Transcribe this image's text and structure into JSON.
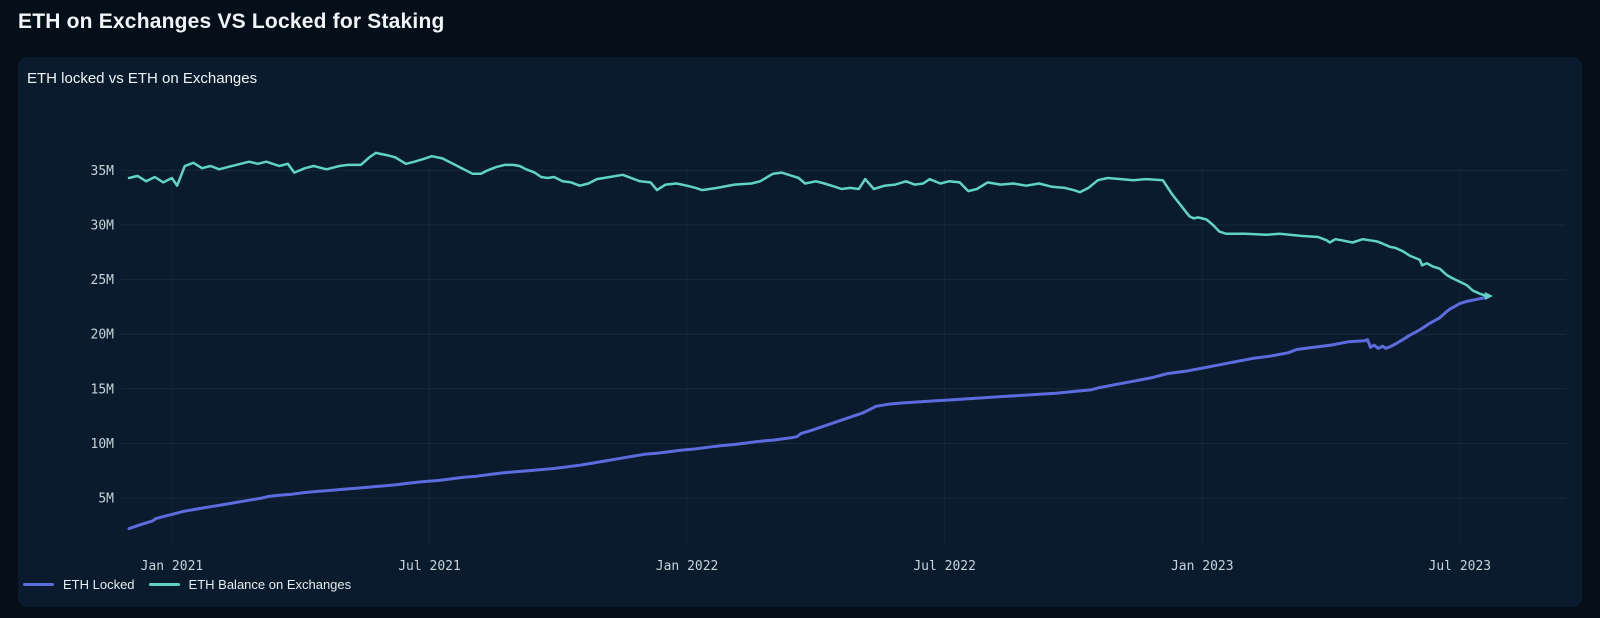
{
  "page": {
    "title": "ETH on Exchanges VS Locked for Staking"
  },
  "colors": {
    "background": "#050f1a",
    "panel": "#091b2c",
    "grid": "rgba(140,175,205,0.10)",
    "grid_vertical": "rgba(140,175,205,0.07)",
    "tick_text": "#c8d3da",
    "eth_locked": "#5c6cdf",
    "eth_balance": "#5ed3c6"
  },
  "chart_data": {
    "type": "line",
    "title": "ETH locked vs ETH on Exchanges",
    "xlabel": "",
    "ylabel": "",
    "x_unit": "months since Dec 2020",
    "ylim": [
      0,
      40.5
    ],
    "grid": true,
    "legend_position": "bottom-left",
    "y_ticks": [
      {
        "v": 5,
        "label": "5M"
      },
      {
        "v": 10,
        "label": "10M"
      },
      {
        "v": 15,
        "label": "15M"
      },
      {
        "v": 20,
        "label": "20M"
      },
      {
        "v": 25,
        "label": "25M"
      },
      {
        "v": 30,
        "label": "30M"
      },
      {
        "v": 35,
        "label": "35M"
      }
    ],
    "x_ticks": [
      {
        "t": 1,
        "label": "Jan 2021"
      },
      {
        "t": 7,
        "label": "Jul 2021"
      },
      {
        "t": 13,
        "label": "Jan 2022"
      },
      {
        "t": 19,
        "label": "Jul 2022"
      },
      {
        "t": 25,
        "label": "Jan 2023"
      },
      {
        "t": 31,
        "label": "Jul 2023"
      }
    ],
    "series": [
      {
        "name": "ETH Locked",
        "color": "#5c6cdf",
        "width": 3,
        "end_marker": false,
        "points": [
          [
            0,
            2.2
          ],
          [
            0.3,
            2.6
          ],
          [
            0.55,
            2.9
          ],
          [
            0.62,
            3.1
          ],
          [
            0.8,
            3.3
          ],
          [
            1.0,
            3.5
          ],
          [
            1.3,
            3.8
          ],
          [
            1.6,
            4.0
          ],
          [
            1.9,
            4.2
          ],
          [
            2.2,
            4.4
          ],
          [
            2.5,
            4.6
          ],
          [
            2.8,
            4.8
          ],
          [
            3.1,
            5.0
          ],
          [
            3.25,
            5.15
          ],
          [
            3.5,
            5.25
          ],
          [
            3.8,
            5.35
          ],
          [
            4.1,
            5.5
          ],
          [
            4.4,
            5.6
          ],
          [
            4.7,
            5.7
          ],
          [
            5.0,
            5.8
          ],
          [
            5.3,
            5.9
          ],
          [
            5.6,
            6.0
          ],
          [
            5.9,
            6.1
          ],
          [
            6.2,
            6.2
          ],
          [
            6.5,
            6.35
          ],
          [
            6.85,
            6.5
          ],
          [
            7.2,
            6.6
          ],
          [
            7.5,
            6.75
          ],
          [
            7.8,
            6.9
          ],
          [
            8.1,
            7.0
          ],
          [
            8.4,
            7.15
          ],
          [
            8.7,
            7.3
          ],
          [
            9.0,
            7.4
          ],
          [
            9.3,
            7.5
          ],
          [
            9.6,
            7.6
          ],
          [
            9.9,
            7.7
          ],
          [
            10.2,
            7.85
          ],
          [
            10.5,
            8.0
          ],
          [
            10.8,
            8.2
          ],
          [
            11.1,
            8.4
          ],
          [
            11.4,
            8.6
          ],
          [
            11.7,
            8.8
          ],
          [
            12.0,
            9.0
          ],
          [
            12.3,
            9.1
          ],
          [
            12.6,
            9.25
          ],
          [
            12.9,
            9.4
          ],
          [
            13.2,
            9.5
          ],
          [
            13.5,
            9.65
          ],
          [
            13.8,
            9.8
          ],
          [
            14.1,
            9.9
          ],
          [
            14.4,
            10.05
          ],
          [
            14.7,
            10.2
          ],
          [
            15.0,
            10.3
          ],
          [
            15.4,
            10.5
          ],
          [
            15.55,
            10.6
          ],
          [
            15.65,
            10.9
          ],
          [
            15.9,
            11.2
          ],
          [
            16.2,
            11.6
          ],
          [
            16.5,
            12.0
          ],
          [
            16.8,
            12.4
          ],
          [
            17.1,
            12.8
          ],
          [
            17.4,
            13.4
          ],
          [
            17.7,
            13.6
          ],
          [
            18.0,
            13.7
          ],
          [
            18.4,
            13.8
          ],
          [
            18.8,
            13.9
          ],
          [
            19.2,
            14.0
          ],
          [
            19.6,
            14.1
          ],
          [
            20.0,
            14.2
          ],
          [
            20.4,
            14.3
          ],
          [
            20.8,
            14.4
          ],
          [
            21.2,
            14.5
          ],
          [
            21.6,
            14.6
          ],
          [
            22.0,
            14.75
          ],
          [
            22.4,
            14.9
          ],
          [
            22.6,
            15.1
          ],
          [
            23.0,
            15.4
          ],
          [
            23.4,
            15.7
          ],
          [
            23.8,
            16.0
          ],
          [
            24.2,
            16.4
          ],
          [
            24.6,
            16.6
          ],
          [
            25.0,
            16.9
          ],
          [
            25.4,
            17.2
          ],
          [
            25.8,
            17.5
          ],
          [
            26.2,
            17.8
          ],
          [
            26.6,
            18.0
          ],
          [
            27.0,
            18.3
          ],
          [
            27.2,
            18.6
          ],
          [
            27.6,
            18.8
          ],
          [
            28.0,
            19.0
          ],
          [
            28.4,
            19.3
          ],
          [
            28.78,
            19.4
          ],
          [
            28.85,
            19.5
          ],
          [
            28.92,
            18.8
          ],
          [
            29.0,
            19.0
          ],
          [
            29.1,
            18.7
          ],
          [
            29.2,
            18.9
          ],
          [
            29.28,
            18.7
          ],
          [
            29.4,
            18.9
          ],
          [
            29.5,
            19.1
          ],
          [
            29.67,
            19.5
          ],
          [
            29.83,
            19.9
          ],
          [
            30.07,
            20.4
          ],
          [
            30.3,
            21.0
          ],
          [
            30.53,
            21.5
          ],
          [
            30.7,
            22.1
          ],
          [
            30.77,
            22.3
          ],
          [
            31.0,
            22.8
          ],
          [
            31.16,
            23.0
          ],
          [
            31.4,
            23.2
          ],
          [
            31.63,
            23.4
          ]
        ]
      },
      {
        "name": "ETH Balance on Exchanges",
        "color": "#5ed3c6",
        "width": 2.5,
        "end_marker": true,
        "points": [
          [
            0,
            34.3
          ],
          [
            0.2,
            34.5
          ],
          [
            0.4,
            34.0
          ],
          [
            0.6,
            34.4
          ],
          [
            0.8,
            33.9
          ],
          [
            1.0,
            34.3
          ],
          [
            1.12,
            33.6
          ],
          [
            1.3,
            35.4
          ],
          [
            1.5,
            35.7
          ],
          [
            1.7,
            35.2
          ],
          [
            1.9,
            35.4
          ],
          [
            2.1,
            35.1
          ],
          [
            2.3,
            35.3
          ],
          [
            2.6,
            35.6
          ],
          [
            2.8,
            35.8
          ],
          [
            3.0,
            35.6
          ],
          [
            3.2,
            35.8
          ],
          [
            3.5,
            35.4
          ],
          [
            3.7,
            35.6
          ],
          [
            3.85,
            34.8
          ],
          [
            4.1,
            35.2
          ],
          [
            4.3,
            35.4
          ],
          [
            4.6,
            35.1
          ],
          [
            4.9,
            35.4
          ],
          [
            5.1,
            35.5
          ],
          [
            5.4,
            35.5
          ],
          [
            5.6,
            36.2
          ],
          [
            5.75,
            36.6
          ],
          [
            6.0,
            36.4
          ],
          [
            6.2,
            36.2
          ],
          [
            6.45,
            35.6
          ],
          [
            6.65,
            35.8
          ],
          [
            6.9,
            36.1
          ],
          [
            7.05,
            36.3
          ],
          [
            7.3,
            36.1
          ],
          [
            7.5,
            35.7
          ],
          [
            7.75,
            35.2
          ],
          [
            8.0,
            34.7
          ],
          [
            8.2,
            34.7
          ],
          [
            8.35,
            35.0
          ],
          [
            8.55,
            35.3
          ],
          [
            8.75,
            35.5
          ],
          [
            8.95,
            35.5
          ],
          [
            9.1,
            35.4
          ],
          [
            9.25,
            35.1
          ],
          [
            9.45,
            34.8
          ],
          [
            9.6,
            34.4
          ],
          [
            9.75,
            34.3
          ],
          [
            9.9,
            34.4
          ],
          [
            10.1,
            34.0
          ],
          [
            10.3,
            33.9
          ],
          [
            10.5,
            33.6
          ],
          [
            10.7,
            33.8
          ],
          [
            10.9,
            34.2
          ],
          [
            11.2,
            34.4
          ],
          [
            11.5,
            34.6
          ],
          [
            11.9,
            34.0
          ],
          [
            12.15,
            33.9
          ],
          [
            12.3,
            33.2
          ],
          [
            12.5,
            33.7
          ],
          [
            12.75,
            33.8
          ],
          [
            13.0,
            33.6
          ],
          [
            13.2,
            33.4
          ],
          [
            13.35,
            33.2
          ],
          [
            13.7,
            33.4
          ],
          [
            14.1,
            33.7
          ],
          [
            14.5,
            33.8
          ],
          [
            14.7,
            34.0
          ],
          [
            15.0,
            34.7
          ],
          [
            15.2,
            34.8
          ],
          [
            15.45,
            34.5
          ],
          [
            15.6,
            34.3
          ],
          [
            15.75,
            33.8
          ],
          [
            16.0,
            34.0
          ],
          [
            16.2,
            33.8
          ],
          [
            16.45,
            33.5
          ],
          [
            16.6,
            33.3
          ],
          [
            16.8,
            33.4
          ],
          [
            17.0,
            33.3
          ],
          [
            17.15,
            34.2
          ],
          [
            17.35,
            33.3
          ],
          [
            17.6,
            33.6
          ],
          [
            17.85,
            33.7
          ],
          [
            18.1,
            34.0
          ],
          [
            18.3,
            33.7
          ],
          [
            18.5,
            33.8
          ],
          [
            18.65,
            34.2
          ],
          [
            18.9,
            33.8
          ],
          [
            19.1,
            34.0
          ],
          [
            19.35,
            33.9
          ],
          [
            19.55,
            33.1
          ],
          [
            19.75,
            33.3
          ],
          [
            20.0,
            33.9
          ],
          [
            20.3,
            33.7
          ],
          [
            20.6,
            33.8
          ],
          [
            20.9,
            33.6
          ],
          [
            21.2,
            33.8
          ],
          [
            21.5,
            33.5
          ],
          [
            21.8,
            33.4
          ],
          [
            22.0,
            33.2
          ],
          [
            22.15,
            33.0
          ],
          [
            22.35,
            33.4
          ],
          [
            22.57,
            34.1
          ],
          [
            22.8,
            34.3
          ],
          [
            23.1,
            34.2
          ],
          [
            23.4,
            34.1
          ],
          [
            23.7,
            34.2
          ],
          [
            24.08,
            34.1
          ],
          [
            24.3,
            32.8
          ],
          [
            24.5,
            31.8
          ],
          [
            24.7,
            30.8
          ],
          [
            24.8,
            30.6
          ],
          [
            24.9,
            30.7
          ],
          [
            25.1,
            30.5
          ],
          [
            25.25,
            30.0
          ],
          [
            25.4,
            29.4
          ],
          [
            25.55,
            29.2
          ],
          [
            26.0,
            29.2
          ],
          [
            26.5,
            29.1
          ],
          [
            26.8,
            29.2
          ],
          [
            27.3,
            29.0
          ],
          [
            27.7,
            28.9
          ],
          [
            27.9,
            28.6
          ],
          [
            27.97,
            28.4
          ],
          [
            28.1,
            28.7
          ],
          [
            28.25,
            28.6
          ],
          [
            28.5,
            28.4
          ],
          [
            28.74,
            28.7
          ],
          [
            28.9,
            28.6
          ],
          [
            29.07,
            28.5
          ],
          [
            29.2,
            28.3
          ],
          [
            29.37,
            28.0
          ],
          [
            29.5,
            27.9
          ],
          [
            29.67,
            27.6
          ],
          [
            29.83,
            27.2
          ],
          [
            30.07,
            26.8
          ],
          [
            30.12,
            26.3
          ],
          [
            30.23,
            26.5
          ],
          [
            30.37,
            26.2
          ],
          [
            30.53,
            26.0
          ],
          [
            30.7,
            25.4
          ],
          [
            30.84,
            25.1
          ],
          [
            31.0,
            24.8
          ],
          [
            31.16,
            24.5
          ],
          [
            31.3,
            24.0
          ],
          [
            31.47,
            23.7
          ],
          [
            31.63,
            23.5
          ]
        ]
      }
    ]
  }
}
